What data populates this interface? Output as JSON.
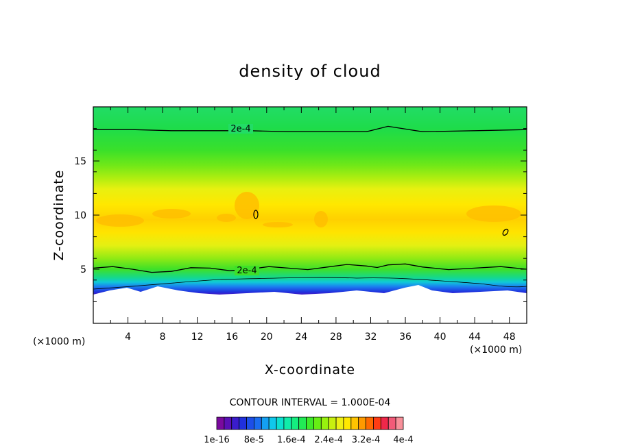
{
  "chart_data": {
    "type": "heatmap",
    "title": "density of cloud",
    "xlabel": "X-coordinate",
    "ylabel": "Z-coordinate",
    "x_unit": "(×1000 m)",
    "y_unit": "(×1000 m)",
    "xlim": [
      0,
      50
    ],
    "ylim": [
      0,
      20
    ],
    "x_ticks": [
      4,
      8,
      12,
      16,
      20,
      24,
      28,
      32,
      36,
      40,
      44,
      48
    ],
    "y_ticks": [
      5,
      10,
      15
    ],
    "contour_interval": "CONTOUR INTERVAL = 1.000E-04",
    "contour_label": "2e-4",
    "contour_levels": [
      {
        "z": [
          17.9,
          17.9,
          17.8,
          17.8,
          17.8,
          17.7,
          17.7,
          17.7,
          18.2,
          17.7,
          17.8,
          17.9
        ]
      },
      {
        "z": [
          5.1,
          5.0,
          4.8,
          5.1,
          5.0,
          5.1,
          5.2,
          5.3,
          5.4,
          5.2,
          5.1,
          5.0
        ]
      }
    ],
    "contour_x": [
      0,
      4.5,
      9,
      13.5,
      18,
      22.5,
      27,
      31.5,
      34,
      38,
      44,
      50
    ],
    "colorbar": {
      "colors": [
        "#7a0a9e",
        "#5a10b5",
        "#3a1ccc",
        "#2030dd",
        "#1c4ee8",
        "#1a6cf0",
        "#14a0f2",
        "#10c8ec",
        "#0ce0d0",
        "#10ecaa",
        "#14ee80",
        "#22ea55",
        "#3eea2a",
        "#66ee14",
        "#98f20e",
        "#c8f010",
        "#eef014",
        "#ffe800",
        "#ffc400",
        "#ff9a00",
        "#ff6a00",
        "#ff3c14",
        "#f0284a",
        "#f25a78",
        "#f8909a"
      ],
      "labels": [
        "1e-16",
        "8e-5",
        "1.6e-4",
        "2.4e-4",
        "3.2e-4",
        "4e-4"
      ]
    }
  }
}
